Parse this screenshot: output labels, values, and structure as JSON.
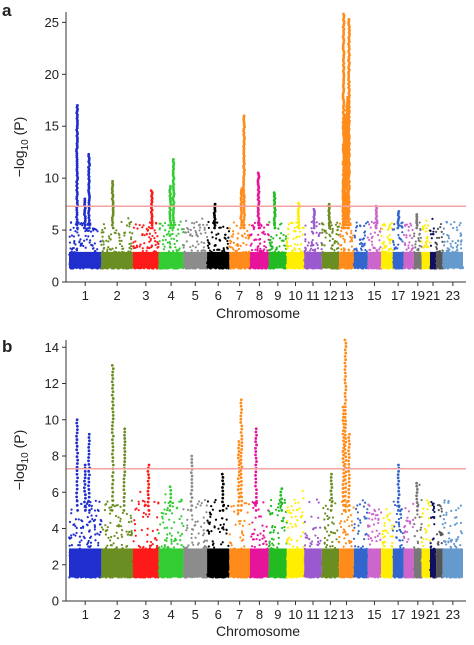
{
  "chart_data": [
    {
      "type": "scatter",
      "panel": "a",
      "title": "",
      "xlabel": "Chromosome",
      "ylabel": "−log",
      "ylabel_sub": "10",
      "ylabel_tail": " (P)",
      "ylim": [
        0,
        26
      ],
      "yticks": [
        0,
        5,
        10,
        15,
        20,
        25
      ],
      "x_tick_labels": [
        "1",
        "2",
        "3",
        "4",
        "5",
        "6",
        "7",
        "8",
        "9",
        "10",
        "11",
        "12",
        "13",
        "15",
        "17",
        "19",
        "21",
        "23"
      ],
      "significance_threshold": 7.3,
      "grid": false,
      "chromosome_colors": [
        "#1f2ecc",
        "#6b8e23",
        "#ff1a1a",
        "#33cc33",
        "#8c8c8c",
        "#000000",
        "#ff8c1a",
        "#e6149b",
        "#22bb22",
        "#ffee00",
        "#9b59d0",
        "#6b8e23",
        "#ff8c1a",
        "#3366cc",
        "#cc66cc",
        "#ffee00",
        "#3366cc",
        "#cc66cc",
        "#777777",
        "#ffee00",
        "#101060",
        "#555555",
        "#6699cc"
      ],
      "peaks": [
        {
          "chromosome": 1,
          "value": 17.0
        },
        {
          "chromosome": 1,
          "value": 12.3
        },
        {
          "chromosome": 1,
          "value": 8.0
        },
        {
          "chromosome": 2,
          "value": 9.7
        },
        {
          "chromosome": 3,
          "value": 8.8
        },
        {
          "chromosome": 4,
          "value": 11.8
        },
        {
          "chromosome": 4,
          "value": 9.2
        },
        {
          "chromosome": 6,
          "value": 7.5
        },
        {
          "chromosome": 7,
          "value": 16.0
        },
        {
          "chromosome": 7,
          "value": 9.0
        },
        {
          "chromosome": 8,
          "value": 10.5
        },
        {
          "chromosome": 9,
          "value": 8.6
        },
        {
          "chromosome": 10,
          "value": 7.6
        },
        {
          "chromosome": 11,
          "value": 7.0
        },
        {
          "chromosome": 12,
          "value": 7.5
        },
        {
          "chromosome": 13,
          "value": 25.8
        },
        {
          "chromosome": 13,
          "value": 25.3
        },
        {
          "chromosome": 13,
          "value": 17.8
        },
        {
          "chromosome": 13,
          "value": 16.0
        },
        {
          "chromosome": 13,
          "value": 10.0
        },
        {
          "chromosome": 15,
          "value": 7.3
        },
        {
          "chromosome": 17,
          "value": 6.8
        },
        {
          "chromosome": 19,
          "value": 6.5
        }
      ]
    },
    {
      "type": "scatter",
      "panel": "b",
      "title": "",
      "xlabel": "Chromosome",
      "ylabel": "−log",
      "ylabel_sub": "10",
      "ylabel_tail": " (P)",
      "ylim": [
        0,
        14.4
      ],
      "yticks": [
        0,
        2,
        4,
        6,
        8,
        10,
        12,
        14
      ],
      "x_tick_labels": [
        "1",
        "2",
        "3",
        "4",
        "5",
        "6",
        "7",
        "8",
        "9",
        "10",
        "11",
        "12",
        "13",
        "15",
        "17",
        "19",
        "21",
        "23"
      ],
      "significance_threshold": 7.3,
      "grid": false,
      "chromosome_colors": [
        "#1f2ecc",
        "#6b8e23",
        "#ff1a1a",
        "#33cc33",
        "#8c8c8c",
        "#000000",
        "#ff8c1a",
        "#e6149b",
        "#22bb22",
        "#ffee00",
        "#9b59d0",
        "#6b8e23",
        "#ff8c1a",
        "#3366cc",
        "#cc66cc",
        "#ffee00",
        "#3366cc",
        "#cc66cc",
        "#777777",
        "#ffee00",
        "#101060",
        "#555555",
        "#6699cc"
      ],
      "peaks": [
        {
          "chromosome": 1,
          "value": 10.0
        },
        {
          "chromosome": 1,
          "value": 9.2
        },
        {
          "chromosome": 1,
          "value": 7.5
        },
        {
          "chromosome": 2,
          "value": 13.0
        },
        {
          "chromosome": 2,
          "value": 9.5
        },
        {
          "chromosome": 3,
          "value": 7.5
        },
        {
          "chromosome": 4,
          "value": 6.3
        },
        {
          "chromosome": 5,
          "value": 8.0
        },
        {
          "chromosome": 6,
          "value": 7.0
        },
        {
          "chromosome": 7,
          "value": 11.1
        },
        {
          "chromosome": 7,
          "value": 8.8
        },
        {
          "chromosome": 8,
          "value": 9.5
        },
        {
          "chromosome": 9,
          "value": 6.2
        },
        {
          "chromosome": 12,
          "value": 7.0
        },
        {
          "chromosome": 13,
          "value": 14.4
        },
        {
          "chromosome": 13,
          "value": 10.7
        },
        {
          "chromosome": 13,
          "value": 9.2
        },
        {
          "chromosome": 17,
          "value": 7.5
        },
        {
          "chromosome": 19,
          "value": 6.5
        }
      ]
    }
  ]
}
